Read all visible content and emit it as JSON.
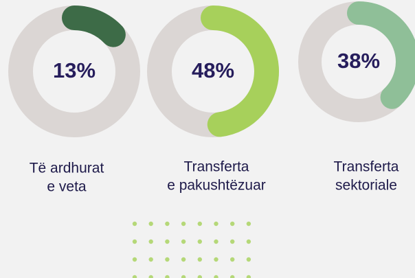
{
  "chart_data": [
    {
      "type": "donut",
      "label": [
        "Të ardhurat",
        "e veta"
      ],
      "values": [
        13
      ],
      "value_labels": [
        "13%"
      ],
      "color": "#3d6b47"
    },
    {
      "type": "donut",
      "label": [
        "Transferta",
        "e pakushtëzuar"
      ],
      "values": [
        48
      ],
      "value_labels": [
        "48%"
      ],
      "color": "#a7d05b"
    },
    {
      "type": "donut",
      "label": [
        "Transferta",
        "sektoriale"
      ],
      "values": [
        38
      ],
      "value_labels": [
        "38%"
      ],
      "color": "#8fbf98"
    }
  ]
}
